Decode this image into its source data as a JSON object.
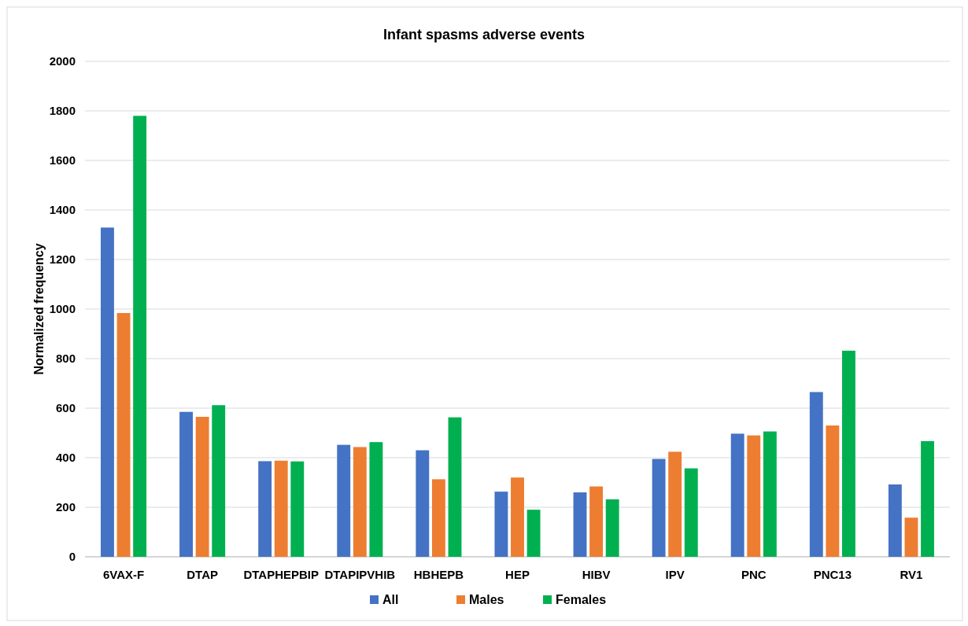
{
  "chart_data": {
    "type": "bar",
    "title": "Infant spasms adverse events",
    "ylabel": "Normalized frequency",
    "categories": [
      "6VAX-F",
      "DTAP",
      "DTAPHEPBIP",
      "DTAPIPVHIB",
      "HBHEPB",
      "HEP",
      "HIBV",
      "IPV",
      "PNC",
      "PNC13",
      "RV1"
    ],
    "series": [
      {
        "name": "All",
        "color": "#4472c4",
        "values": [
          1329,
          585,
          386,
          452,
          430,
          263,
          260,
          395,
          497,
          665,
          292
        ]
      },
      {
        "name": "Males",
        "color": "#ed7d31",
        "values": [
          984,
          565,
          388,
          443,
          313,
          320,
          284,
          424,
          490,
          530,
          158
        ]
      },
      {
        "name": "Females",
        "color": "#00b050",
        "values": [
          1780,
          612,
          385,
          463,
          563,
          190,
          232,
          357,
          506,
          832,
          467
        ]
      }
    ],
    "ylim": [
      0,
      2000
    ],
    "yticks": [
      0,
      200,
      400,
      600,
      800,
      1000,
      1200,
      1400,
      1600,
      1800,
      2000
    ],
    "grid": "y",
    "legend": "bottom"
  }
}
